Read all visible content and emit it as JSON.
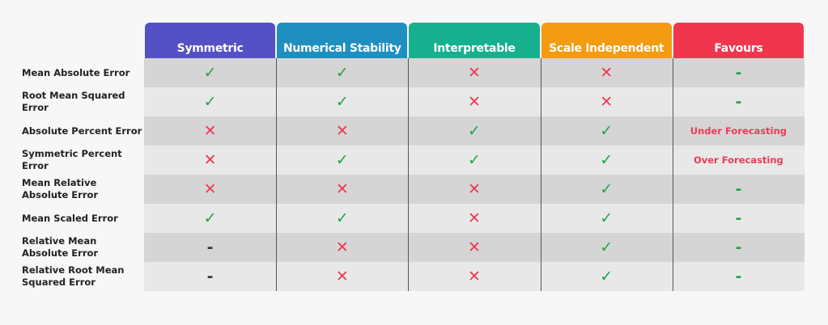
{
  "table": {
    "columns": [
      {
        "label": "Symmetric",
        "color": "#5451c4"
      },
      {
        "label": "Numerical Stability",
        "color": "#1f8fc0"
      },
      {
        "label": "Interpretable",
        "color": "#17b08f"
      },
      {
        "label": "Scale Independent",
        "color": "#f39c12"
      },
      {
        "label": "Favours",
        "color": "#f0364f",
        "cell_color": "#ee3a55",
        "cell_colors": {
          "-": "#22a447"
        }
      }
    ],
    "symbol_colors": {
      "✓": "#22a447",
      "✕": "#ee3a55",
      "-": "#333333"
    },
    "row_colors": [
      "#d5d5d5",
      "#e8e8e8"
    ],
    "rows": [
      {
        "label": "Mean Absolute Error",
        "cells": [
          "✓",
          "✓",
          "✕",
          "✕",
          "-"
        ]
      },
      {
        "label": "Root Mean Squared Error",
        "cells": [
          "✓",
          "✓",
          "✕",
          "✕",
          "-"
        ]
      },
      {
        "label": "Absolute Percent Error",
        "cells": [
          "✕",
          "✕",
          "✓",
          "✓",
          "Under Forecasting"
        ]
      },
      {
        "label": "Symmetric Percent Error",
        "cells": [
          "✕",
          "✓",
          "✓",
          "✓",
          "Over Forecasting"
        ]
      },
      {
        "label": "Mean Relative Absolute Error",
        "cells": [
          "✕",
          "✕",
          "✕",
          "✓",
          "-"
        ]
      },
      {
        "label": "Mean Scaled Error",
        "cells": [
          "✓",
          "✓",
          "✕",
          "✓",
          "-"
        ]
      },
      {
        "label": "Relative Mean Absolute Error",
        "cells": [
          "-",
          "✕",
          "✕",
          "✓",
          "-"
        ]
      },
      {
        "label": "Relative Root Mean Squared Error",
        "cells": [
          "-",
          "✕",
          "✕",
          "✓",
          "-"
        ]
      }
    ]
  }
}
